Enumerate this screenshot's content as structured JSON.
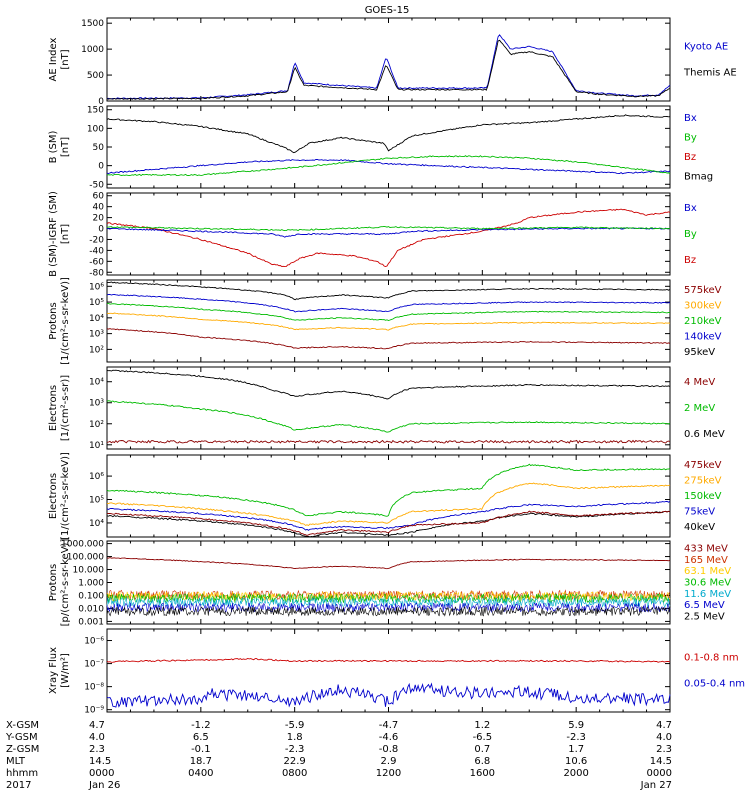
{
  "title": "GOES-15",
  "panels": [
    {
      "id": "ae",
      "ylabel": [
        "AE Index",
        "[nT]"
      ],
      "ticks": [
        "0",
        "500",
        "1000",
        "1500"
      ],
      "legend": [
        {
          "text": "Kyoto AE",
          "color": "#0000cc"
        },
        {
          "text": "Themis AE",
          "color": "#000000"
        }
      ]
    },
    {
      "id": "bsm",
      "ylabel": [
        "B (SM)",
        "[nT]"
      ],
      "ticks": [
        "-50",
        "0",
        "50",
        "100",
        "150"
      ],
      "legend": [
        {
          "text": "Bx",
          "color": "#0000cc"
        },
        {
          "text": "By",
          "color": "#00bb00"
        },
        {
          "text": "Bz",
          "color": "#cc0000"
        },
        {
          "text": "Bmag",
          "color": "#000000"
        }
      ]
    },
    {
      "id": "bigrf",
      "ylabel": [
        "B (SM)-IGRF (SM)",
        "[nT]"
      ],
      "ticks": [
        "-80",
        "-60",
        "-40",
        "-20",
        "0",
        "20",
        "40",
        "60"
      ],
      "legend": [
        {
          "text": "Bx",
          "color": "#0000cc"
        },
        {
          "text": "By",
          "color": "#00bb00"
        },
        {
          "text": "Bz",
          "color": "#cc0000"
        }
      ]
    },
    {
      "id": "prot1",
      "ylabel": [
        "Protons",
        "[1/(cm²-s-sr-keV)]"
      ],
      "ticks": [
        "10²",
        "10³",
        "10⁴",
        "10⁵",
        "10⁶"
      ],
      "legend": [
        {
          "text": "575keV",
          "color": "#8b0000"
        },
        {
          "text": "300keV",
          "color": "#ffaa00"
        },
        {
          "text": "210keV",
          "color": "#00bb00"
        },
        {
          "text": "140keV",
          "color": "#0000cc"
        },
        {
          "text": "95keV",
          "color": "#000000"
        }
      ]
    },
    {
      "id": "elec1",
      "ylabel": [
        "Electrons",
        "[1/(cm²-s-sr)]"
      ],
      "ticks": [
        "10¹",
        "10²",
        "10³",
        "10⁴"
      ],
      "legend": [
        {
          "text": "4 MeV",
          "color": "#8b0000"
        },
        {
          "text": "2 MeV",
          "color": "#00bb00"
        },
        {
          "text": "0.6 MeV",
          "color": "#000000"
        }
      ]
    },
    {
      "id": "elec2",
      "ylabel": [
        "Electrons",
        "[1/(cm²-s-sr-keV)]"
      ],
      "ticks": [
        "10⁴",
        "10⁵",
        "10⁶"
      ],
      "legend": [
        {
          "text": "475keV",
          "color": "#8b0000"
        },
        {
          "text": "275keV",
          "color": "#ffaa00"
        },
        {
          "text": "150keV",
          "color": "#00bb00"
        },
        {
          "text": "75keV",
          "color": "#0000cc"
        },
        {
          "text": "40keV",
          "color": "#000000"
        }
      ]
    },
    {
      "id": "prot2",
      "ylabel": [
        "Protons",
        "[p/(cm²-s-sr-keV)]"
      ],
      "ticks": [
        "0.001",
        "0.010",
        "0.100",
        "1.000",
        "10.000",
        "100.000",
        "1000.000"
      ],
      "legend": [
        {
          "text": "433 MeV",
          "color": "#8b0000"
        },
        {
          "text": "165 MeV",
          "color": "#cc3300"
        },
        {
          "text": "63.1 MeV",
          "color": "#ffcc00"
        },
        {
          "text": "30.6 MeV",
          "color": "#00bb00"
        },
        {
          "text": "11.6 MeV",
          "color": "#00aacc"
        },
        {
          "text": "6.5 MeV",
          "color": "#0000cc"
        },
        {
          "text": "2.5 MeV",
          "color": "#000000"
        }
      ]
    },
    {
      "id": "xray",
      "ylabel": [
        "Xray Flux",
        "[W/m²]"
      ],
      "ticks": [
        "10⁻⁹",
        "10⁻⁸",
        "10⁻⁷",
        "10⁻⁶"
      ],
      "legend": [
        {
          "text": "0.1-0.8 nm",
          "color": "#cc0000"
        },
        {
          "text": "0.05-0.4 nm",
          "color": "#0000cc"
        }
      ]
    }
  ],
  "ephemeris": {
    "labels": [
      "X-GSM",
      "Y-GSM",
      "Z-GSM",
      "MLT",
      "hhmm",
      "2017"
    ],
    "columns": [
      [
        "4.7",
        "4.0",
        "2.3",
        "14.5",
        "0000",
        "Jan 26"
      ],
      [
        "-1.2",
        "6.5",
        "-0.1",
        "18.7",
        "0400",
        ""
      ],
      [
        "-5.9",
        "1.8",
        "-2.3",
        "22.9",
        "0800",
        ""
      ],
      [
        "-4.7",
        "-4.6",
        "-0.8",
        "2.9",
        "1200",
        ""
      ],
      [
        "1.2",
        "-6.5",
        "0.7",
        "6.8",
        "1600",
        ""
      ],
      [
        "5.9",
        "-2.3",
        "1.7",
        "10.6",
        "2000",
        ""
      ],
      [
        "4.7",
        "4.0",
        "2.3",
        "14.5",
        "0000",
        "Jan 27"
      ]
    ]
  },
  "chart_data": {
    "type": "line",
    "title": "GOES-15",
    "x_unit": "hours since Jan 26 2017 00:00",
    "xlim": [
      0,
      24
    ],
    "x_ticks": [
      "0000",
      "0400",
      "0800",
      "1200",
      "1600",
      "2000",
      "0000"
    ],
    "series": [
      {
        "panel": "ae",
        "name": "Kyoto AE",
        "x": [
          0,
          4,
          6,
          7.7,
          8.0,
          8.4,
          11.5,
          11.9,
          12.4,
          16.2,
          16.7,
          17.2,
          18.0,
          19.0,
          20.0,
          21.0,
          22.5,
          23.5,
          24
        ],
        "y": [
          50,
          60,
          120,
          200,
          750,
          350,
          250,
          850,
          250,
          250,
          1300,
          1000,
          1050,
          950,
          200,
          150,
          100,
          120,
          300
        ]
      },
      {
        "panel": "ae",
        "name": "Themis AE",
        "x": [
          0,
          4,
          6,
          7.7,
          8.0,
          8.4,
          11.5,
          11.9,
          12.4,
          16.2,
          16.7,
          17.2,
          18.0,
          19.0,
          20.0,
          21.0,
          22.5,
          23.5,
          24
        ],
        "y": [
          40,
          50,
          100,
          180,
          650,
          300,
          220,
          700,
          220,
          220,
          1200,
          900,
          950,
          850,
          180,
          130,
          90,
          100,
          250
        ]
      },
      {
        "panel": "bsm",
        "name": "Bmag",
        "x": [
          0,
          2,
          4,
          6,
          7.5,
          8,
          8.6,
          10,
          11.8,
          12,
          13,
          16,
          18,
          20,
          22,
          24
        ],
        "y": [
          125,
          118,
          105,
          85,
          50,
          35,
          60,
          75,
          60,
          40,
          80,
          110,
          115,
          125,
          135,
          130
        ]
      },
      {
        "panel": "bsm",
        "name": "Bx",
        "x": [
          0,
          2,
          4,
          6,
          8,
          10,
          12,
          14,
          16,
          18,
          20,
          22,
          24
        ],
        "y": [
          -20,
          -10,
          0,
          10,
          15,
          15,
          5,
          0,
          -5,
          -10,
          -15,
          -20,
          -15
        ]
      },
      {
        "panel": "bsm",
        "name": "By",
        "x": [
          0,
          4,
          8,
          12,
          14,
          16,
          18,
          20,
          22,
          24
        ],
        "y": [
          -25,
          -25,
          -5,
          20,
          25,
          25,
          20,
          10,
          -5,
          -20
        ]
      },
      {
        "panel": "bigrf",
        "name": "Bz",
        "x": [
          0,
          2,
          4,
          6,
          7,
          7.6,
          8.2,
          9,
          10.5,
          11.5,
          11.9,
          12.4,
          13.5,
          16,
          17.5,
          18,
          20,
          22,
          23,
          24
        ],
        "y": [
          10,
          0,
          -20,
          -45,
          -65,
          -70,
          -55,
          -45,
          -50,
          -60,
          -70,
          -40,
          -20,
          -5,
          10,
          20,
          30,
          35,
          25,
          30
        ]
      },
      {
        "panel": "bigrf",
        "name": "Bx",
        "x": [
          0,
          4,
          7,
          7.6,
          8.2,
          10,
          12,
          13,
          16,
          20,
          24
        ],
        "y": [
          0,
          -5,
          -10,
          -15,
          -10,
          -10,
          -10,
          -5,
          -2,
          0,
          0
        ]
      },
      {
        "panel": "bigrf",
        "name": "By",
        "x": [
          0,
          4,
          8,
          12,
          16,
          20,
          24
        ],
        "y": [
          3,
          0,
          -3,
          3,
          0,
          2,
          0
        ]
      },
      {
        "panel": "prot1",
        "name": "95keV",
        "x": [
          0,
          4,
          7.5,
          8,
          10,
          12,
          13,
          18,
          24
        ],
        "y": [
          1800000.0,
          900000.0,
          300000.0,
          150000.0,
          280000.0,
          180000.0,
          500000.0,
          700000.0,
          600000.0
        ]
      },
      {
        "panel": "prot1",
        "name": "140keV",
        "x": [
          0,
          4,
          7.5,
          8,
          10,
          12,
          13,
          18,
          24
        ],
        "y": [
          300000.0,
          150000.0,
          40000.0,
          25000.0,
          38000.0,
          25000.0,
          70000.0,
          100000.0,
          90000.0
        ]
      },
      {
        "panel": "prot1",
        "name": "210keV",
        "x": [
          0,
          4,
          7.5,
          8,
          10,
          12,
          13,
          18,
          24
        ],
        "y": [
          80000.0,
          35000.0,
          11000.0,
          7000.0,
          10000.0,
          7000.0,
          17000.0,
          25000.0,
          22000.0
        ]
      },
      {
        "panel": "prot1",
        "name": "300keV",
        "x": [
          0,
          4,
          7.5,
          8,
          10,
          12,
          13,
          18,
          24
        ],
        "y": [
          20000.0,
          8000.0,
          2800.0,
          1800.0,
          2400.0,
          1800.0,
          4000.0,
          5000.0,
          4500.0
        ]
      },
      {
        "panel": "prot1",
        "name": "575keV",
        "x": [
          0,
          4,
          7.5,
          8,
          10,
          12,
          13,
          18,
          24
        ],
        "y": [
          2000.0,
          600.0,
          180.0,
          120.0,
          150.0,
          110.0,
          250.0,
          300.0,
          250.0
        ]
      },
      {
        "panel": "elec1",
        "name": "0.6 MeV",
        "x": [
          0,
          4,
          7,
          8,
          10,
          12,
          13,
          18,
          24
        ],
        "y": [
          35000.0,
          18000.0,
          4000.0,
          2000.0,
          3500.0,
          1500.0,
          5000.0,
          7000.0,
          6000.0
        ]
      },
      {
        "panel": "elec1",
        "name": "2 MeV",
        "x": [
          0,
          4,
          7,
          8,
          10,
          12,
          13,
          18,
          24
        ],
        "y": [
          1200.0,
          500.0,
          120.0,
          50.0,
          90.0,
          40.0,
          100.0,
          120.0,
          100.0
        ]
      },
      {
        "panel": "elec1",
        "name": "4 MeV",
        "x": [
          0,
          24
        ],
        "y": [
          14,
          14
        ]
      },
      {
        "panel": "elec2",
        "name": "40keV",
        "x": [
          0,
          4,
          7.5,
          8.5,
          10,
          12,
          13,
          16,
          18,
          20,
          24
        ],
        "y": [
          20000.0,
          12000.0,
          5000.0,
          2500.0,
          4000.0,
          3000.0,
          4000.0,
          12000.0,
          25000.0,
          18000.0,
          30000.0
        ]
      },
      {
        "panel": "elec2",
        "name": "75keV",
        "x": [
          0,
          4,
          7.5,
          8.5,
          10,
          12,
          13,
          16,
          18,
          20,
          24
        ],
        "y": [
          40000.0,
          25000.0,
          10000.0,
          5000.0,
          7000.0,
          6000.0,
          8000.0,
          30000.0,
          60000.0,
          50000.0,
          80000.0
        ]
      },
      {
        "panel": "elec2",
        "name": "150keV",
        "x": [
          0,
          4,
          7.5,
          8.5,
          10,
          12,
          13,
          16,
          18,
          20,
          24
        ],
        "y": [
          250000.0,
          150000.0,
          50000.0,
          20000.0,
          30000.0,
          20000.0,
          200000.0,
          300000.0,
          3000000.0,
          1800000.0,
          2000000.0
        ]
      },
      {
        "panel": "elec2",
        "name": "275keV",
        "x": [
          0,
          4,
          7.5,
          8.5,
          10,
          12,
          13,
          16,
          18,
          20,
          24
        ],
        "y": [
          70000.0,
          40000.0,
          15000.0,
          8000.0,
          12000.0,
          10000.0,
          30000.0,
          40000.0,
          500000.0,
          300000.0,
          400000.0
        ]
      },
      {
        "panel": "elec2",
        "name": "475keV",
        "x": [
          0,
          4,
          7.5,
          8.5,
          10,
          12,
          13,
          16,
          18,
          20,
          24
        ],
        "y": [
          25000.0,
          15000.0,
          6000.0,
          3000.0,
          5000.0,
          4000.0,
          8000.0,
          10000.0,
          30000.0,
          20000.0,
          30000.0
        ]
      },
      {
        "panel": "prot2",
        "name": "433 MeV",
        "x": [
          0,
          4,
          7.5,
          8,
          10,
          12,
          13,
          18,
          24
        ],
        "y": [
          80,
          40,
          15,
          12,
          18,
          12,
          40,
          60,
          50
        ]
      },
      {
        "panel": "xray",
        "name": "0.1-0.8 nm",
        "x": [
          0,
          4,
          6,
          8,
          12,
          16,
          20,
          24
        ],
        "y": [
          1.2e-07,
          1.4e-07,
          1.6e-07,
          1.3e-07,
          1.3e-07,
          1.3e-07,
          1.3e-07,
          1.2e-07
        ]
      },
      {
        "panel": "xray",
        "name": "0.05-0.4 nm",
        "x": [
          0,
          4,
          4.5,
          6,
          8,
          10,
          12,
          13,
          16,
          17,
          19,
          20,
          24
        ],
        "y": [
          2e-09,
          3e-09,
          5e-09,
          4e-09,
          2e-09,
          7e-09,
          2e-09,
          8e-09,
          5e-09,
          6e-09,
          5e-09,
          3e-09,
          3e-09
        ]
      }
    ]
  }
}
